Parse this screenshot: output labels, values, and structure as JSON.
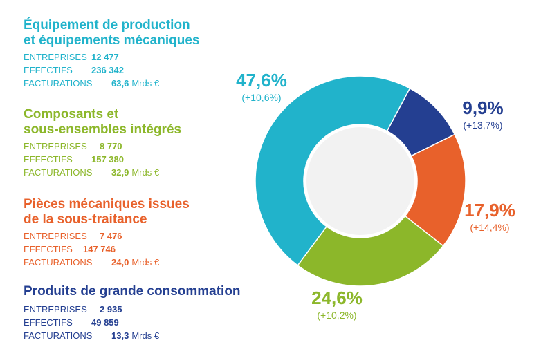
{
  "segments": [
    {
      "title_lines": [
        "Équipement de production",
        "et équipements mécaniques"
      ],
      "color": "#21b3cb",
      "stats": [
        {
          "label": "ENTREPRISES",
          "value": "12 477",
          "unit": ""
        },
        {
          "label": "EFFECTIFS",
          "value": "236 342",
          "unit": ""
        },
        {
          "label": "FACTURATIONS",
          "value": "63,6",
          "unit": "Mrds €"
        }
      ]
    },
    {
      "title_lines": [
        "Composants et",
        "sous-ensembles intégrés"
      ],
      "color": "#8cb72a",
      "stats": [
        {
          "label": "ENTREPRISES",
          "value": "8 770",
          "unit": ""
        },
        {
          "label": "EFFECTIFS",
          "value": "157 380",
          "unit": ""
        },
        {
          "label": "FACTURATIONS",
          "value": "32,9",
          "unit": "Mrds €"
        }
      ]
    },
    {
      "title_lines": [
        "Pièces mécaniques issues",
        "de la sous-traitance"
      ],
      "color": "#e8612b",
      "stats": [
        {
          "label": "ENTREPRISES",
          "value": "7 476",
          "unit": ""
        },
        {
          "label": "EFFECTIFS",
          "value": "147 746",
          "unit": ""
        },
        {
          "label": "FACTURATIONS",
          "value": "24,0",
          "unit": "Mrds €"
        }
      ]
    },
    {
      "title_lines": [
        "Produits de grande consommation"
      ],
      "color": "#243f91",
      "stats": [
        {
          "label": "ENTREPRISES",
          "value": "2 935",
          "unit": ""
        },
        {
          "label": "EFFECTIFS",
          "value": "49 859",
          "unit": ""
        },
        {
          "label": "FACTURATIONS",
          "value": "13,3",
          "unit": "Mrds €"
        }
      ]
    }
  ],
  "chart_data": {
    "type": "pie",
    "style": "donut",
    "start": "top-right, clockwise",
    "grid": false,
    "slices": [
      {
        "value": 9.9,
        "label": "9,9%",
        "change": "(+13,7%)",
        "color": "#243f91"
      },
      {
        "value": 17.9,
        "label": "17,9%",
        "change": "(+14,4%)",
        "color": "#e8612b"
      },
      {
        "value": 24.6,
        "label": "24,6%",
        "change": "(+10,2%)",
        "color": "#8cb72a"
      },
      {
        "value": 47.6,
        "label": "47,6%",
        "change": "(+10,6%)",
        "color": "#21b3cb"
      }
    ],
    "center_color": "#f2f2f2"
  }
}
